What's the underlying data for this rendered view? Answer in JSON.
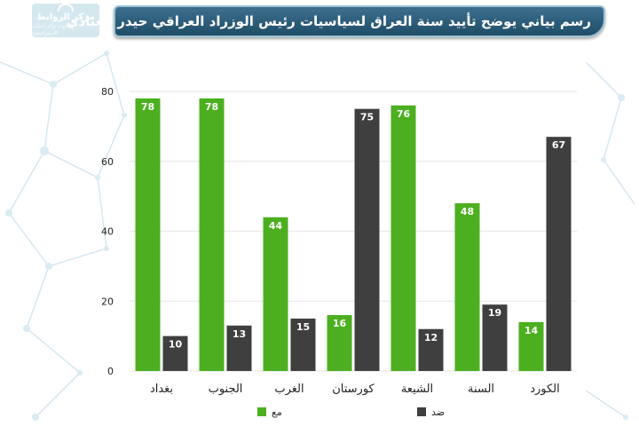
{
  "header": {
    "title": "رسم بياني يوضح تأييد سنة العراق لسياسيات رئيس الوزراد العراقي حيدر العبادي"
  },
  "logo": {
    "name": "مركز الروابط",
    "tagline": "للبحوث والدراسات الاستراتيجية"
  },
  "colors": {
    "support": "#4caf1f",
    "oppose": "#3f3f3f",
    "grid": "#e6e6e6",
    "axis_text": "#222222",
    "banner": "#2b5a77"
  },
  "chart_data": {
    "type": "bar",
    "title": "رسم بياني يوضح تأييد سنة العراق لسياسيات رئيس الوزراد العراقي حيدر العبادي",
    "xlabel": "",
    "ylabel": "",
    "categories": [
      "بغداد",
      "الجنوب",
      "الغرب",
      "كورستان",
      "الشيعة",
      "السنة",
      "الكورد"
    ],
    "series": [
      {
        "name": "مع",
        "color": "#4caf1f",
        "values": [
          78,
          78,
          44,
          16,
          76,
          48,
          14
        ]
      },
      {
        "name": "ضد",
        "color": "#3f3f3f",
        "values": [
          10,
          13,
          15,
          75,
          12,
          19,
          67
        ]
      }
    ],
    "ylim": [
      0,
      80
    ],
    "yticks": [
      0,
      20,
      40,
      60,
      80
    ],
    "grid": true,
    "legend": "bottom",
    "data_labels": true
  }
}
